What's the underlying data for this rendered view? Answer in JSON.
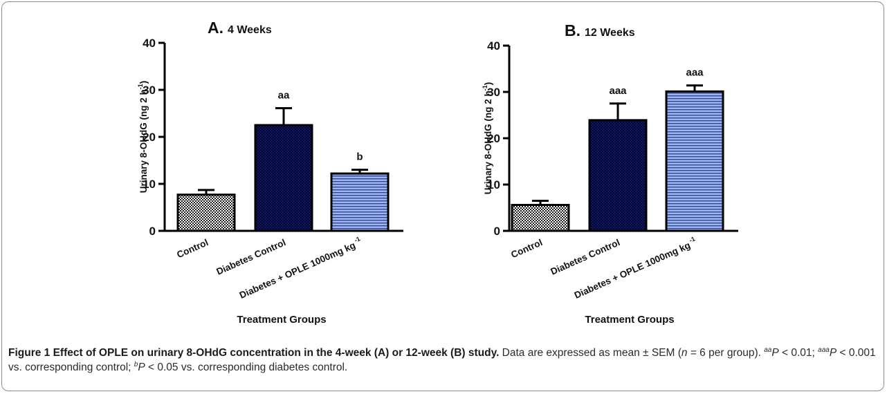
{
  "chart_data": [
    {
      "type": "bar",
      "title_letter": "A.",
      "title_rest": "4 Weeks",
      "categories": [
        "Control",
        "Diabetes Control",
        "Diabetes + OPLE 1000mg kg -1"
      ],
      "category_labels": [
        {
          "main": "Control",
          "sup": ""
        },
        {
          "main": "Diabetes Control",
          "sup": ""
        },
        {
          "main": "Diabetes + OPLE 1000mg kg",
          "sup": "-1"
        }
      ],
      "values": [
        7.7,
        22.5,
        12.2
      ],
      "errors": [
        1.0,
        3.6,
        0.8
      ],
      "annotations": [
        "",
        "aa",
        "b"
      ],
      "patterns": [
        "checker",
        "darkblue",
        "stripes"
      ],
      "ylabel": {
        "main": "Urinary 8-OHdG (ng 2 h",
        "sup": "-1",
        "close": ")"
      },
      "xlabel": "Treatment Groups",
      "ylim": [
        0,
        40
      ],
      "yticks": [
        0,
        10,
        20,
        30,
        40
      ]
    },
    {
      "type": "bar",
      "title_letter": "B.",
      "title_rest": "12 Weeks",
      "categories": [
        "Control",
        "Diabetes Control",
        "Diabetes + OPLE 1000mg kg -1"
      ],
      "category_labels": [
        {
          "main": "Control",
          "sup": ""
        },
        {
          "main": "Diabetes Control",
          "sup": ""
        },
        {
          "main": "Diabetes + OPLE 1000mg kg",
          "sup": "-1"
        }
      ],
      "values": [
        5.6,
        23.9,
        30.1
      ],
      "errors": [
        0.9,
        3.6,
        1.3
      ],
      "annotations": [
        "",
        "aaa",
        "aaa"
      ],
      "patterns": [
        "checker",
        "darkblue",
        "stripes"
      ],
      "ylabel": {
        "main": "Urinary 8-OHdG (ng 2 h",
        "sup": "-1",
        "close": ")"
      },
      "xlabel": "Treatment Groups",
      "ylim": [
        0,
        40
      ],
      "yticks": [
        0,
        10,
        20,
        30,
        40
      ]
    }
  ],
  "caption": {
    "title": "Figure 1 Effect of OPLE on urinary 8-OHdG concentration in the 4-week (A) or 12-week (B) study.",
    "text1": " Data are expressed as mean ± SEM (",
    "n_italic": "n",
    "text2": " = 6 per group). ",
    "sup_aa": "aa",
    "p1": "P",
    "text3": " < 0.01; ",
    "sup_aaa": "aaa",
    "p2": "P",
    "text4": " < 0.001 vs. corresponding control; ",
    "sup_b": "b",
    "p3": "P",
    "text5": " < 0.05  vs. corresponding diabetes control."
  }
}
